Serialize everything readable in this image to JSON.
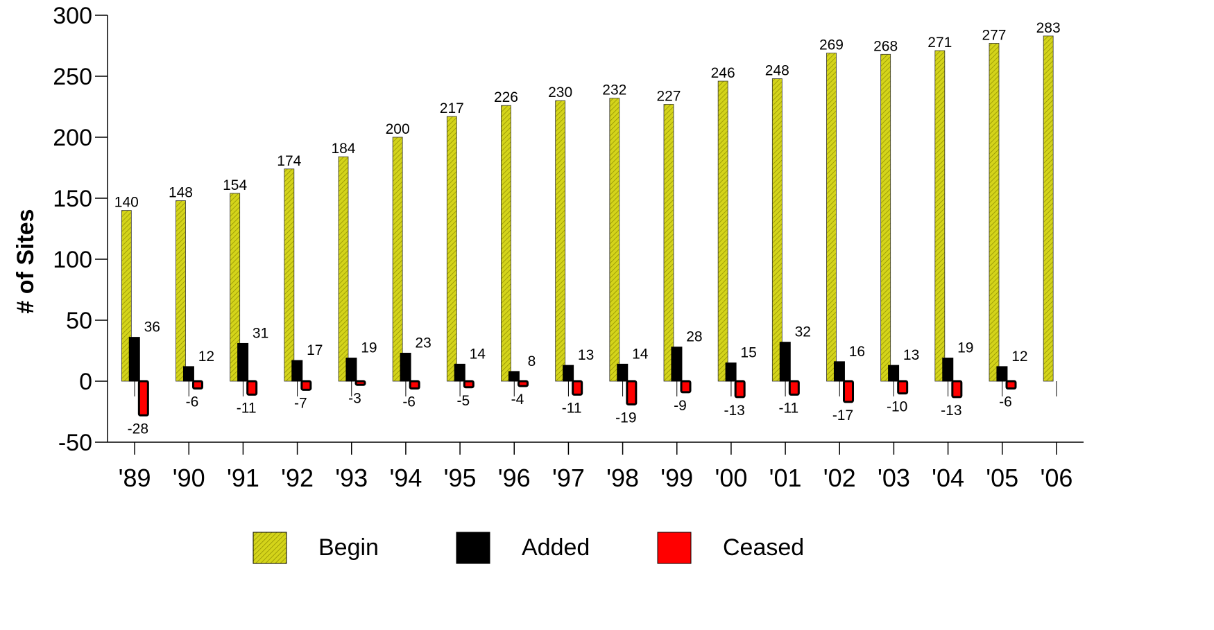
{
  "chart_data": {
    "type": "bar",
    "ylabel": "# of Sites",
    "ylim": [
      -50,
      300
    ],
    "yticks": [
      "-50",
      "0",
      "50",
      "100",
      "150",
      "200",
      "250",
      "300"
    ],
    "yticks_values": [
      -50,
      0,
      50,
      100,
      150,
      200,
      250,
      300
    ],
    "categories": [
      "'89",
      "'90",
      "'91",
      "'92",
      "'93",
      "'94",
      "'95",
      "'96",
      "'97",
      "'98",
      "'99",
      "'00",
      "'01",
      "'02",
      "'03",
      "'04",
      "'05",
      "'06"
    ],
    "series": [
      {
        "name": "Begin",
        "color": "#d4d41a",
        "pattern": "diagonal-hatch",
        "values": [
          140,
          148,
          154,
          174,
          184,
          200,
          217,
          226,
          230,
          232,
          227,
          246,
          248,
          269,
          268,
          271,
          277,
          283
        ],
        "labels": [
          "140",
          "148",
          "154",
          "174",
          "184",
          "200",
          "217",
          "226",
          "230",
          "232",
          "227",
          "246",
          "248",
          "269",
          "268",
          "271",
          "277",
          "283"
        ]
      },
      {
        "name": "Added",
        "color": "#000000",
        "values": [
          36,
          12,
          31,
          17,
          19,
          23,
          14,
          8,
          13,
          14,
          28,
          15,
          32,
          16,
          13,
          19,
          12,
          null
        ],
        "labels": [
          "36",
          "12",
          "31",
          "17",
          "19",
          "23",
          "14",
          "8",
          "13",
          "14",
          "28",
          "15",
          "32",
          "16",
          "13",
          "19",
          "12",
          ""
        ]
      },
      {
        "name": "Ceased",
        "color": "#ff0000",
        "values": [
          -28,
          -6,
          -11,
          -7,
          -3,
          -6,
          -5,
          -4,
          -11,
          -19,
          -9,
          -13,
          -11,
          -17,
          -10,
          -13,
          -6,
          null
        ],
        "labels": [
          "-28",
          "-6",
          "-11",
          "-7",
          "-3",
          "-6",
          "-5",
          "-4",
          "-11",
          "-19",
          "-9",
          "-13",
          "-11",
          "-17",
          "-10",
          "-13",
          "-6",
          ""
        ]
      }
    ],
    "grid": false,
    "legend": "bottom-center"
  }
}
